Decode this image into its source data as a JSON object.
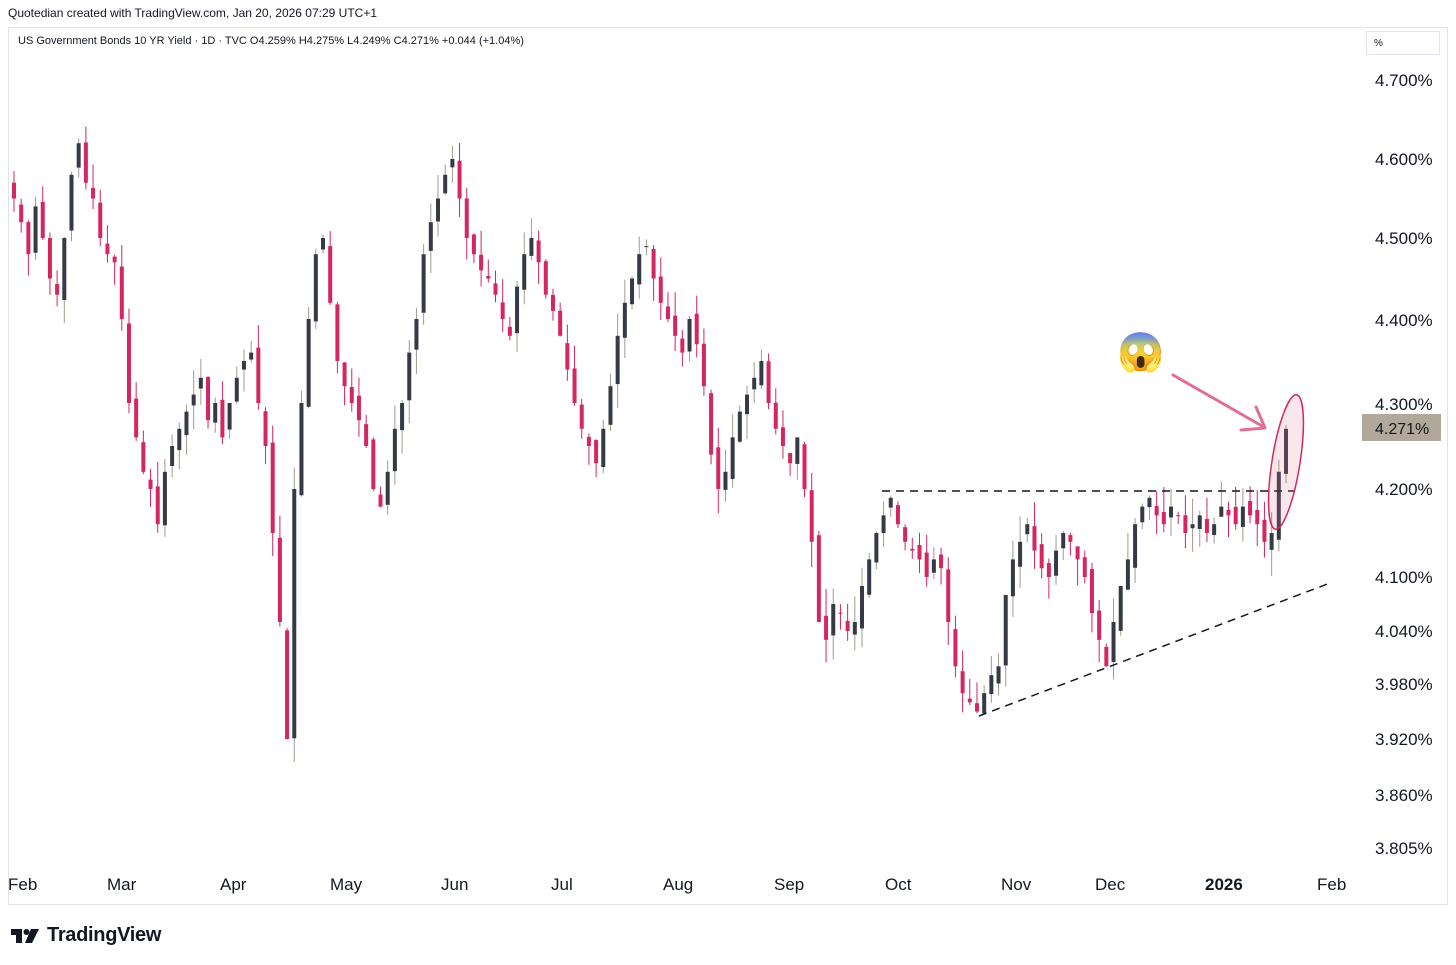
{
  "header": {
    "credit": "Quotedian created with TradingView.com, Jan 20, 2026 07:29 UTC+1"
  },
  "legend": {
    "ohlc_text": "US Government Bonds 10 YR Yield · 1D · TVC  O4.259%  H4.275%  L4.249%  C4.271%  +0.044 (+1.04%)"
  },
  "price_scale": {
    "unit": "%",
    "ticks": [
      "4.700%",
      "4.600%",
      "4.500%",
      "4.400%",
      "4.300%",
      "4.200%",
      "4.100%",
      "4.040%",
      "3.980%",
      "3.920%",
      "3.860%",
      "3.805%"
    ],
    "last_price_label": "4.271%"
  },
  "time_scale": {
    "labels": [
      "Feb",
      "Mar",
      "Apr",
      "May",
      "Jun",
      "Jul",
      "Aug",
      "Sep",
      "Oct",
      "Nov",
      "Dec",
      "2026",
      "Feb"
    ]
  },
  "branding": {
    "logo_text": "TradingView"
  },
  "annotation": {
    "emoji": "😱"
  },
  "colors": {
    "up": "#363a45",
    "down": "#d4265f",
    "wick_up": "#a09b8c",
    "annotation": "#e07090",
    "price_tag": "#b1a89a"
  },
  "chart_data": {
    "type": "candlestick",
    "title": "US Government Bonds 10 YR Yield",
    "interval": "1D",
    "source": "TVC",
    "y_unit": "%",
    "ylim": [
      3.79,
      4.73
    ],
    "y_scale": "piecewise (labels as printed)",
    "last": {
      "open": 4.259,
      "high": 4.275,
      "low": 4.249,
      "close": 4.271,
      "change": 0.044,
      "change_pct": 1.04
    },
    "approx_daily_closes": [
      4.55,
      4.52,
      4.48,
      4.54,
      4.5,
      4.45,
      4.43,
      4.5,
      4.58,
      4.62,
      4.57,
      4.55,
      4.5,
      4.48,
      4.47,
      4.4,
      4.3,
      4.26,
      4.22,
      4.2,
      4.16,
      4.22,
      4.25,
      4.27,
      4.29,
      4.31,
      4.33,
      4.28,
      4.3,
      4.26,
      4.3,
      4.33,
      4.35,
      4.36,
      4.3,
      4.25,
      4.15,
      4.05,
      3.92,
      4.2,
      4.3,
      4.4,
      4.48,
      4.5,
      4.42,
      4.35,
      4.32,
      4.3,
      4.28,
      4.25,
      4.2,
      4.18,
      4.22,
      4.27,
      4.3,
      4.36,
      4.4,
      4.48,
      4.52,
      4.55,
      4.58,
      4.6,
      4.55,
      4.5,
      4.48,
      4.46,
      4.45,
      4.43,
      4.4,
      4.38,
      4.44,
      4.48,
      4.5,
      4.47,
      4.43,
      4.41,
      4.38,
      4.34,
      4.3,
      4.27,
      4.25,
      4.23,
      4.27,
      4.32,
      4.38,
      4.42,
      4.45,
      4.48,
      4.49,
      4.45,
      4.42,
      4.4,
      4.38,
      4.36,
      4.4,
      4.37,
      4.32,
      4.24,
      4.2,
      4.22,
      4.26,
      4.29,
      4.31,
      4.33,
      4.35,
      4.3,
      4.27,
      4.25,
      4.23,
      4.26,
      4.2,
      4.14,
      4.05,
      4.03,
      4.07,
      4.06,
      4.04,
      4.05,
      4.09,
      4.12,
      4.15,
      4.17,
      4.19,
      4.16,
      4.14,
      4.13,
      4.12,
      4.1,
      4.12,
      4.11,
      4.05,
      4.0,
      3.97,
      3.96,
      3.95,
      3.97,
      3.99,
      4.0,
      4.08,
      4.12,
      4.14,
      4.16,
      4.13,
      4.11,
      4.1,
      4.13,
      4.15,
      4.14,
      4.12,
      4.1,
      4.06,
      4.03,
      4.0,
      4.05,
      4.09,
      4.12,
      4.16,
      4.18,
      4.19,
      4.17,
      4.16,
      4.18,
      4.17,
      4.15,
      4.16,
      4.17,
      4.15,
      4.16,
      4.18,
      4.17,
      4.16,
      4.18,
      4.17,
      4.16,
      4.14,
      4.15,
      4.22,
      4.27
    ],
    "support_lines": [
      {
        "type": "horizontal resistance",
        "level": 4.197,
        "from": "late Sep 2025",
        "to": "mid Jan 2026"
      },
      {
        "type": "rising trendline",
        "from": [
          "late Oct 2025",
          3.945
        ],
        "to": [
          "end Jan 2026",
          4.09
        ]
      }
    ],
    "x_labels": [
      "Feb",
      "Mar",
      "Apr",
      "May",
      "Jun",
      "Jul",
      "Aug",
      "Sep",
      "Oct",
      "Nov",
      "Dec",
      "2026",
      "Feb"
    ],
    "grid": false,
    "legend": "top-left"
  }
}
